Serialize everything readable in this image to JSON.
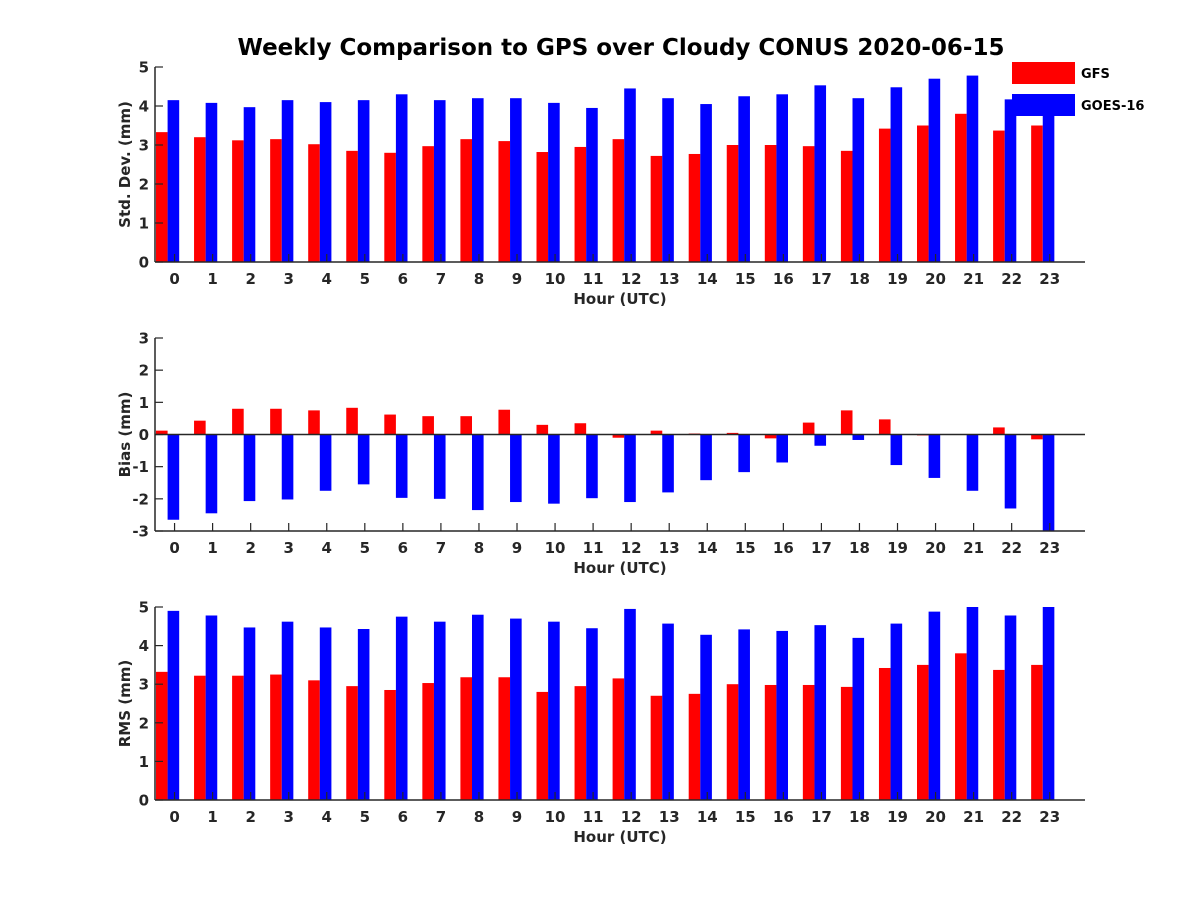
{
  "title": "Weekly Comparison to GPS over Cloudy CONUS 2020-06-15",
  "colors": {
    "GFS": "#ff0000",
    "GOES-16": "#0000ff",
    "axis": "#262626"
  },
  "legend": {
    "position": "top-right",
    "entries": [
      "GFS",
      "GOES-16"
    ]
  },
  "chart_data": [
    {
      "type": "bar",
      "ylabel": "Std. Dev. (mm)",
      "xlabel": "Hour (UTC)",
      "ylim": [
        0,
        5
      ],
      "yticks": [
        0,
        1,
        2,
        3,
        4,
        5
      ],
      "categories": [
        "0",
        "1",
        "2",
        "3",
        "4",
        "5",
        "6",
        "7",
        "8",
        "9",
        "10",
        "11",
        "12",
        "13",
        "14",
        "15",
        "16",
        "17",
        "18",
        "19",
        "20",
        "21",
        "22",
        "23"
      ],
      "series": [
        {
          "name": "GFS",
          "values": [
            3.33,
            3.2,
            3.12,
            3.15,
            3.02,
            2.85,
            2.8,
            2.97,
            3.15,
            3.1,
            2.82,
            2.95,
            3.15,
            2.72,
            2.77,
            3.0,
            3.0,
            2.97,
            2.85,
            3.42,
            3.5,
            3.8,
            3.37,
            3.5
          ]
        },
        {
          "name": "GOES-16",
          "values": [
            4.15,
            4.08,
            3.97,
            4.15,
            4.1,
            4.15,
            4.3,
            4.15,
            4.2,
            4.2,
            4.08,
            3.95,
            4.45,
            4.2,
            4.05,
            4.25,
            4.3,
            4.53,
            4.2,
            4.48,
            4.7,
            4.78,
            4.17,
            4.0
          ]
        }
      ]
    },
    {
      "type": "bar",
      "ylabel": "Bias (mm)",
      "xlabel": "Hour (UTC)",
      "ylim": [
        -3,
        3
      ],
      "yticks": [
        -3,
        -2,
        -1,
        0,
        1,
        2,
        3
      ],
      "categories": [
        "0",
        "1",
        "2",
        "3",
        "4",
        "5",
        "6",
        "7",
        "8",
        "9",
        "10",
        "11",
        "12",
        "13",
        "14",
        "15",
        "16",
        "17",
        "18",
        "19",
        "20",
        "21",
        "22",
        "23"
      ],
      "series": [
        {
          "name": "GFS",
          "values": [
            0.12,
            0.43,
            0.8,
            0.8,
            0.75,
            0.83,
            0.62,
            0.57,
            0.57,
            0.77,
            0.3,
            0.35,
            -0.1,
            0.12,
            0.03,
            0.05,
            -0.12,
            0.37,
            0.75,
            0.47,
            -0.03,
            0.0,
            0.22,
            -0.15
          ]
        },
        {
          "name": "GOES-16",
          "values": [
            -2.65,
            -2.45,
            -2.07,
            -2.02,
            -1.75,
            -1.55,
            -1.97,
            -2.0,
            -2.35,
            -2.1,
            -2.15,
            -1.98,
            -2.1,
            -1.8,
            -1.42,
            -1.17,
            -0.87,
            -0.35,
            -0.17,
            -0.95,
            -1.35,
            -1.75,
            -2.3,
            -3.0
          ]
        }
      ]
    },
    {
      "type": "bar",
      "ylabel": "RMS (mm)",
      "xlabel": "Hour (UTC)",
      "ylim": [
        0,
        5
      ],
      "yticks": [
        0,
        1,
        2,
        3,
        4,
        5
      ],
      "categories": [
        "0",
        "1",
        "2",
        "3",
        "4",
        "5",
        "6",
        "7",
        "8",
        "9",
        "10",
        "11",
        "12",
        "13",
        "14",
        "15",
        "16",
        "17",
        "18",
        "19",
        "20",
        "21",
        "22",
        "23"
      ],
      "series": [
        {
          "name": "GFS",
          "values": [
            3.32,
            3.22,
            3.22,
            3.25,
            3.1,
            2.95,
            2.85,
            3.03,
            3.18,
            3.18,
            2.8,
            2.95,
            3.15,
            2.7,
            2.75,
            3.0,
            2.98,
            2.98,
            2.93,
            3.42,
            3.5,
            3.8,
            3.37,
            3.5
          ]
        },
        {
          "name": "GOES-16",
          "values": [
            4.9,
            4.78,
            4.47,
            4.62,
            4.47,
            4.43,
            4.75,
            4.62,
            4.8,
            4.7,
            4.62,
            4.45,
            4.95,
            4.57,
            4.28,
            4.42,
            4.38,
            4.53,
            4.2,
            4.57,
            4.88,
            5.0,
            4.78,
            5.0
          ]
        }
      ]
    }
  ]
}
